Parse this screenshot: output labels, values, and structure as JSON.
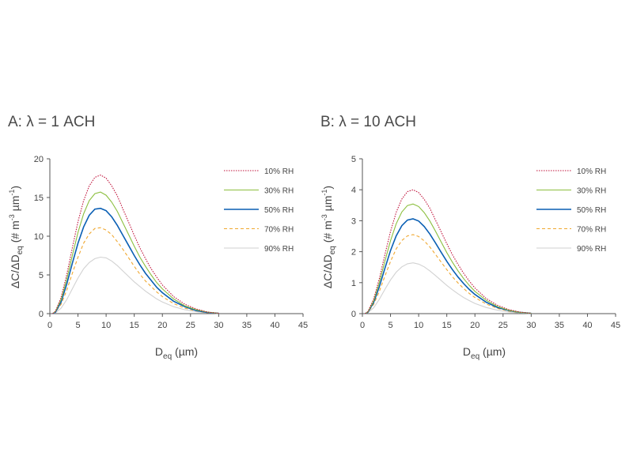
{
  "chart_data": [
    {
      "type": "line",
      "title": "A: λ = 1 ACH",
      "xlabel": "D_eq (µm)",
      "ylabel": "ΔC/ΔD_eq (# m⁻³ µm⁻¹)",
      "xlim": [
        0,
        45
      ],
      "ylim": [
        0,
        20
      ],
      "xticks": [
        "0",
        "5",
        "10",
        "15",
        "20",
        "25",
        "30",
        "35",
        "40",
        "45"
      ],
      "xtick_values": [
        0,
        5,
        10,
        15,
        20,
        25,
        30,
        35,
        40,
        45
      ],
      "yticks": [
        "0",
        "5",
        "10",
        "15",
        "20"
      ],
      "ytick_values": [
        0,
        5,
        10,
        15,
        20
      ],
      "grid": false,
      "legend_position": "top-right",
      "x": [
        0.5,
        1,
        2,
        3,
        4,
        5,
        6,
        7,
        8,
        9,
        10,
        11,
        12,
        13,
        14,
        15,
        16,
        17,
        18,
        19,
        20,
        22,
        24,
        26,
        28,
        30
      ],
      "series": [
        {
          "name": "10% RH",
          "color": "#c0143c",
          "style": "dotted",
          "values": [
            0.0,
            0.3,
            2.1,
            5.0,
            8.5,
            11.9,
            14.6,
            16.5,
            17.6,
            17.9,
            17.5,
            16.5,
            15.2,
            13.5,
            11.8,
            10.1,
            8.5,
            7.1,
            5.8,
            4.7,
            3.7,
            2.2,
            1.2,
            0.6,
            0.2,
            0.05
          ]
        },
        {
          "name": "30% RH",
          "color": "#8cbf3f",
          "style": "solid",
          "values": [
            0.0,
            0.3,
            1.8,
            4.4,
            7.5,
            10.5,
            12.9,
            14.6,
            15.5,
            15.7,
            15.3,
            14.4,
            13.2,
            11.7,
            10.2,
            8.7,
            7.3,
            6.1,
            5.0,
            4.0,
            3.2,
            1.9,
            1.0,
            0.5,
            0.2,
            0.05
          ]
        },
        {
          "name": "50% RH",
          "color": "#0a5fb4",
          "style": "solid",
          "values": [
            0.0,
            0.2,
            1.5,
            3.8,
            6.5,
            9.1,
            11.2,
            12.7,
            13.5,
            13.6,
            13.3,
            12.5,
            11.4,
            10.1,
            8.8,
            7.5,
            6.3,
            5.2,
            4.3,
            3.4,
            2.7,
            1.6,
            0.9,
            0.4,
            0.15,
            0.05
          ]
        },
        {
          "name": "70% RH",
          "color": "#f0a830",
          "style": "dashed",
          "values": [
            0.0,
            0.2,
            1.2,
            3.0,
            5.2,
            7.3,
            9.1,
            10.3,
            11.0,
            11.1,
            10.8,
            10.2,
            9.3,
            8.3,
            7.2,
            6.1,
            5.1,
            4.2,
            3.5,
            2.8,
            2.2,
            1.3,
            0.7,
            0.35,
            0.1,
            0.03
          ]
        },
        {
          "name": "90% RH",
          "color": "#d2d2d2",
          "style": "solid",
          "values": [
            0.0,
            0.1,
            0.7,
            1.8,
            3.2,
            4.6,
            5.8,
            6.6,
            7.1,
            7.3,
            7.2,
            6.8,
            6.2,
            5.5,
            4.8,
            4.1,
            3.5,
            2.9,
            2.4,
            1.9,
            1.5,
            0.9,
            0.5,
            0.25,
            0.1,
            0.02
          ]
        }
      ]
    },
    {
      "type": "line",
      "title": "B: λ = 10 ACH",
      "xlabel": "D_eq (µm)",
      "ylabel": "ΔC/ΔD_eq (# m⁻³ µm⁻¹)",
      "xlim": [
        0,
        45
      ],
      "ylim": [
        0,
        5
      ],
      "xticks": [
        "0",
        "5",
        "10",
        "15",
        "20",
        "25",
        "30",
        "35",
        "40",
        "45"
      ],
      "xtick_values": [
        0,
        5,
        10,
        15,
        20,
        25,
        30,
        35,
        40,
        45
      ],
      "yticks": [
        "0",
        "1",
        "2",
        "3",
        "4",
        "5"
      ],
      "ytick_values": [
        0,
        1,
        2,
        3,
        4,
        5
      ],
      "grid": false,
      "legend_position": "top-right",
      "x": [
        0.5,
        1,
        2,
        3,
        4,
        5,
        6,
        7,
        8,
        9,
        10,
        11,
        12,
        13,
        14,
        15,
        16,
        17,
        18,
        19,
        20,
        22,
        24,
        26,
        28,
        30
      ],
      "series": [
        {
          "name": "10% RH",
          "color": "#c0143c",
          "style": "dotted",
          "values": [
            0.0,
            0.07,
            0.47,
            1.12,
            1.9,
            2.66,
            3.27,
            3.7,
            3.94,
            4.0,
            3.91,
            3.69,
            3.4,
            3.02,
            2.64,
            2.26,
            1.9,
            1.59,
            1.3,
            1.05,
            0.83,
            0.49,
            0.27,
            0.13,
            0.05,
            0.01
          ]
        },
        {
          "name": "30% RH",
          "color": "#8cbf3f",
          "style": "solid",
          "values": [
            0.0,
            0.06,
            0.41,
            0.99,
            1.69,
            2.36,
            2.9,
            3.28,
            3.49,
            3.54,
            3.46,
            3.26,
            2.99,
            2.66,
            2.31,
            1.97,
            1.66,
            1.38,
            1.13,
            0.91,
            0.72,
            0.43,
            0.23,
            0.11,
            0.04,
            0.01
          ]
        },
        {
          "name": "50% RH",
          "color": "#0a5fb4",
          "style": "solid",
          "values": [
            0.0,
            0.05,
            0.36,
            0.86,
            1.46,
            2.04,
            2.51,
            2.84,
            3.02,
            3.06,
            2.99,
            2.81,
            2.57,
            2.28,
            1.98,
            1.69,
            1.42,
            1.18,
            0.97,
            0.78,
            0.62,
            0.37,
            0.2,
            0.1,
            0.04,
            0.01
          ]
        },
        {
          "name": "70% RH",
          "color": "#f0a830",
          "style": "dashed",
          "values": [
            0.0,
            0.04,
            0.3,
            0.71,
            1.21,
            1.69,
            2.09,
            2.36,
            2.51,
            2.55,
            2.49,
            2.35,
            2.15,
            1.91,
            1.66,
            1.42,
            1.19,
            0.99,
            0.81,
            0.65,
            0.52,
            0.31,
            0.17,
            0.08,
            0.03,
            0.01
          ]
        },
        {
          "name": "90% RH",
          "color": "#d2d2d2",
          "style": "solid",
          "values": [
            0.0,
            0.03,
            0.19,
            0.46,
            0.78,
            1.09,
            1.34,
            1.51,
            1.61,
            1.64,
            1.6,
            1.51,
            1.38,
            1.23,
            1.07,
            0.91,
            0.77,
            0.64,
            0.52,
            0.42,
            0.33,
            0.2,
            0.11,
            0.05,
            0.02,
            0.005
          ]
        }
      ]
    }
  ]
}
